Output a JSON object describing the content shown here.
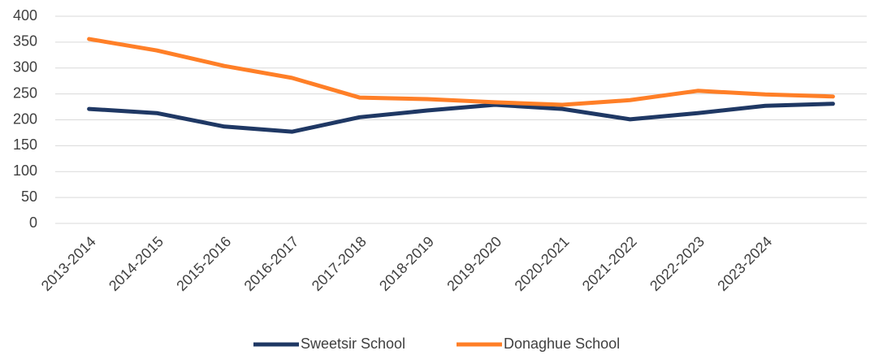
{
  "chart_data": {
    "type": "line",
    "categories": [
      "2013-2014",
      "2014-2015",
      "2015-2016",
      "2016-2017",
      "2017-2018",
      "2018-2019",
      "2019-2020",
      "2020-2021",
      "2021-2022",
      "2022-2023",
      "2023-2024",
      null
    ],
    "series": [
      {
        "name": "Sweetsir School",
        "color": "#1f3864",
        "values": [
          221,
          213,
          187,
          177,
          205,
          218,
          229,
          221,
          201,
          213,
          227,
          231
        ]
      },
      {
        "name": "Donaghue School",
        "color": "#ff7f27",
        "values": [
          356,
          334,
          304,
          281,
          243,
          240,
          234,
          229,
          238,
          256,
          249,
          245
        ]
      }
    ],
    "ylim": [
      0,
      400
    ],
    "yticks": [
      0,
      50,
      100,
      150,
      200,
      250,
      300,
      350,
      400
    ],
    "grid": true,
    "legend": "bottom"
  }
}
